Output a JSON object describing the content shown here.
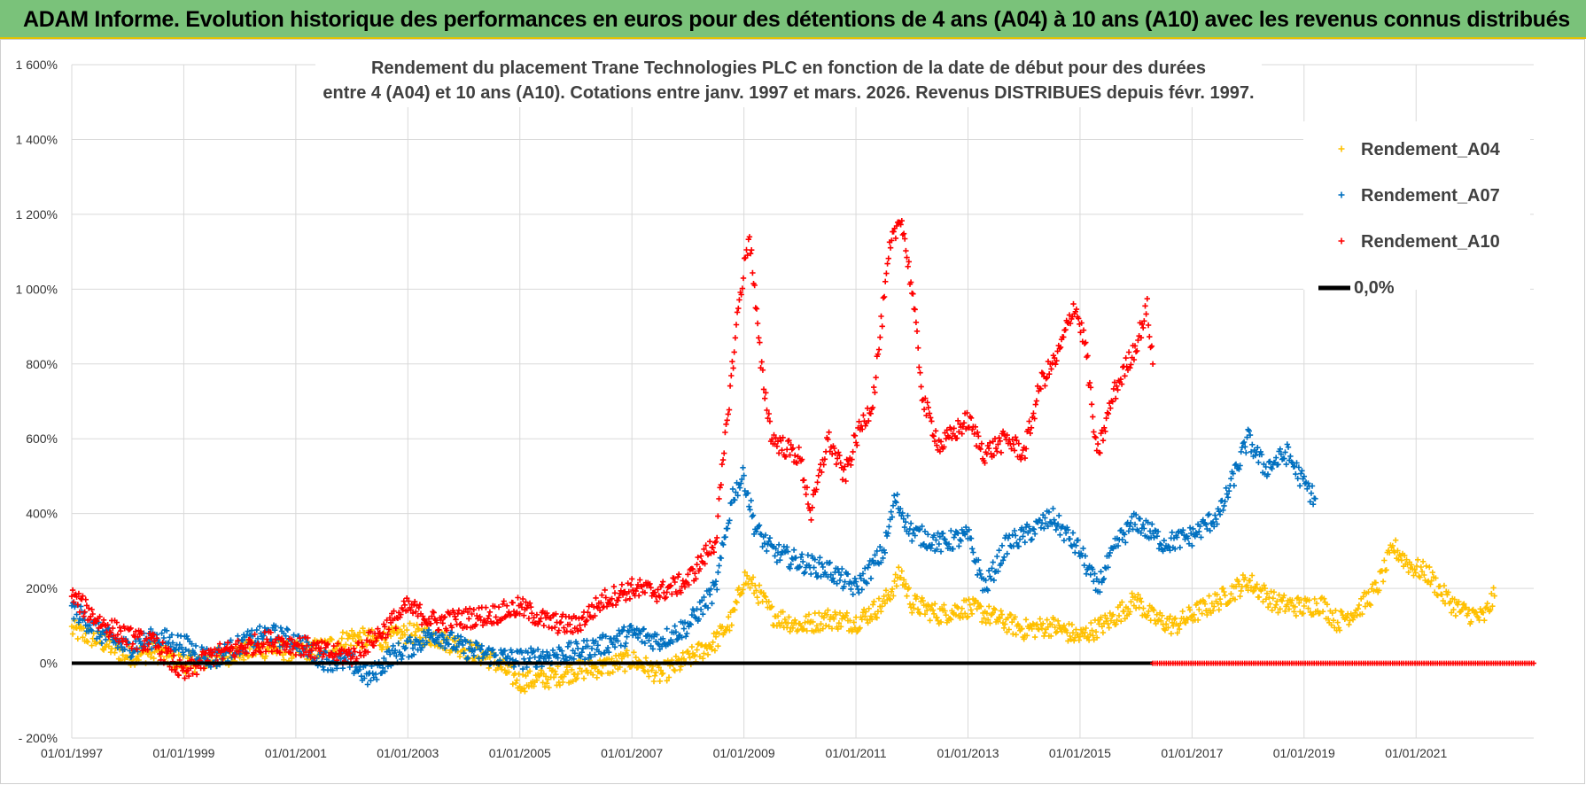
{
  "header": {
    "title": "ADAM Informe. Evolution historique des performances en euros pour des détentions de 4 ans (A04) à 10 ans (A10) avec les revenus connus distribués"
  },
  "chart_data": {
    "type": "scatter",
    "title_line1": "Rendement du placement Trane Technologies PLC en fonction de la date de début pour des durées",
    "title_line2": "entre 4 (A04) et 10 ans (A10).  Cotations entre janv. 1997 et mars. 2026. Revenus DISTRIBUES depuis févr. 1997.",
    "xlabel": "",
    "ylabel": "",
    "xlim": [
      1997.0,
      2023.1
    ],
    "ylim": [
      -200,
      1600
    ],
    "y_ticks": [
      -200,
      0,
      200,
      400,
      600,
      800,
      1000,
      1200,
      1400,
      1600
    ],
    "y_tick_labels": [
      "- 200%",
      "0%",
      "200%",
      "400%",
      "600%",
      "800%",
      "1 000%",
      "1 200%",
      "1 400%",
      "1 600%"
    ],
    "x_ticks": [
      1997,
      1999,
      2001,
      2003,
      2005,
      2007,
      2009,
      2011,
      2013,
      2015,
      2017,
      2019,
      2021
    ],
    "x_tick_labels": [
      "01/01/1997",
      "01/01/1999",
      "01/01/2001",
      "01/01/2003",
      "01/01/2005",
      "01/01/2007",
      "01/01/2009",
      "01/01/2011",
      "01/01/2013",
      "01/01/2015",
      "01/01/2017",
      "01/01/2019",
      "01/01/2021"
    ],
    "grid": true,
    "legend_position": "top-right",
    "series": [
      {
        "name": "Rendement_A04",
        "color": "#ffc000",
        "marker": "plus",
        "points": [
          [
            1997.0,
            90
          ],
          [
            1997.5,
            60
          ],
          [
            1998.0,
            20
          ],
          [
            1998.5,
            30
          ],
          [
            1999.0,
            0
          ],
          [
            1999.5,
            10
          ],
          [
            2000.0,
            30
          ],
          [
            2000.5,
            40
          ],
          [
            2001.0,
            30
          ],
          [
            2001.5,
            40
          ],
          [
            2002.0,
            70
          ],
          [
            2002.5,
            60
          ],
          [
            2003.0,
            80
          ],
          [
            2003.5,
            70
          ],
          [
            2004.0,
            40
          ],
          [
            2004.5,
            10
          ],
          [
            2005.0,
            -50
          ],
          [
            2005.5,
            -40
          ],
          [
            2006.0,
            -20
          ],
          [
            2006.5,
            -10
          ],
          [
            2007.0,
            10
          ],
          [
            2007.5,
            -30
          ],
          [
            2008.0,
            10
          ],
          [
            2008.5,
            60
          ],
          [
            2008.8,
            120
          ],
          [
            2009.0,
            230
          ],
          [
            2009.2,
            200
          ],
          [
            2009.5,
            130
          ],
          [
            2010.0,
            100
          ],
          [
            2010.5,
            120
          ],
          [
            2011.0,
            110
          ],
          [
            2011.5,
            160
          ],
          [
            2011.8,
            240
          ],
          [
            2012.0,
            160
          ],
          [
            2012.5,
            130
          ],
          [
            2013.0,
            150
          ],
          [
            2013.5,
            120
          ],
          [
            2014.0,
            90
          ],
          [
            2014.5,
            100
          ],
          [
            2015.0,
            70
          ],
          [
            2015.5,
            110
          ],
          [
            2016.0,
            170
          ],
          [
            2016.3,
            120
          ],
          [
            2016.7,
            100
          ],
          [
            2017.0,
            130
          ],
          [
            2017.5,
            170
          ],
          [
            2018.0,
            220
          ],
          [
            2018.5,
            160
          ],
          [
            2019.0,
            150
          ],
          [
            2019.3,
            160
          ],
          [
            2019.6,
            110
          ],
          [
            2020.0,
            150
          ],
          [
            2020.3,
            200
          ],
          [
            2020.6,
            310
          ],
          [
            2020.9,
            260
          ],
          [
            2021.2,
            240
          ],
          [
            2021.5,
            180
          ],
          [
            2021.8,
            140
          ],
          [
            2022.2,
            120
          ],
          [
            2022.4,
            180
          ]
        ]
      },
      {
        "name": "Rendement_A07",
        "color": "#0070c0",
        "marker": "plus",
        "points": [
          [
            1997.0,
            150
          ],
          [
            1997.5,
            80
          ],
          [
            1998.0,
            40
          ],
          [
            1998.5,
            70
          ],
          [
            1999.0,
            50
          ],
          [
            1999.5,
            10
          ],
          [
            2000.0,
            50
          ],
          [
            2000.5,
            80
          ],
          [
            2001.0,
            60
          ],
          [
            2001.5,
            10
          ],
          [
            2002.0,
            0
          ],
          [
            2002.3,
            -40
          ],
          [
            2002.7,
            20
          ],
          [
            2003.0,
            40
          ],
          [
            2003.5,
            80
          ],
          [
            2004.0,
            40
          ],
          [
            2004.5,
            20
          ],
          [
            2005.0,
            10
          ],
          [
            2005.5,
            20
          ],
          [
            2006.0,
            30
          ],
          [
            2006.5,
            50
          ],
          [
            2007.0,
            80
          ],
          [
            2007.5,
            60
          ],
          [
            2008.0,
            100
          ],
          [
            2008.5,
            200
          ],
          [
            2008.8,
            450
          ],
          [
            2009.0,
            500
          ],
          [
            2009.2,
            360
          ],
          [
            2009.5,
            300
          ],
          [
            2010.0,
            270
          ],
          [
            2010.5,
            250
          ],
          [
            2011.0,
            200
          ],
          [
            2011.5,
            300
          ],
          [
            2011.7,
            440
          ],
          [
            2012.0,
            350
          ],
          [
            2012.5,
            320
          ],
          [
            2013.0,
            340
          ],
          [
            2013.3,
            200
          ],
          [
            2013.7,
            320
          ],
          [
            2014.0,
            340
          ],
          [
            2014.5,
            390
          ],
          [
            2015.0,
            300
          ],
          [
            2015.3,
            200
          ],
          [
            2015.7,
            330
          ],
          [
            2016.0,
            380
          ],
          [
            2016.5,
            320
          ],
          [
            2017.0,
            340
          ],
          [
            2017.5,
            400
          ],
          [
            2018.0,
            600
          ],
          [
            2018.3,
            520
          ],
          [
            2018.7,
            560
          ],
          [
            2019.0,
            480
          ],
          [
            2019.2,
            440
          ]
        ]
      },
      {
        "name": "Rendement_A10",
        "color": "#ff0000",
        "marker": "plus",
        "points": [
          [
            1997.0,
            180
          ],
          [
            1997.5,
            110
          ],
          [
            1998.0,
            70
          ],
          [
            1998.5,
            50
          ],
          [
            1999.0,
            -30
          ],
          [
            1999.5,
            20
          ],
          [
            2000.0,
            40
          ],
          [
            2000.5,
            60
          ],
          [
            2001.0,
            50
          ],
          [
            2001.5,
            30
          ],
          [
            2002.0,
            20
          ],
          [
            2002.5,
            80
          ],
          [
            2003.0,
            150
          ],
          [
            2003.5,
            110
          ],
          [
            2004.0,
            120
          ],
          [
            2004.5,
            130
          ],
          [
            2005.0,
            150
          ],
          [
            2005.5,
            110
          ],
          [
            2006.0,
            100
          ],
          [
            2006.5,
            170
          ],
          [
            2007.0,
            200
          ],
          [
            2007.5,
            190
          ],
          [
            2008.0,
            220
          ],
          [
            2008.5,
            330
          ],
          [
            2008.7,
            650
          ],
          [
            2008.9,
            950
          ],
          [
            2009.1,
            1150
          ],
          [
            2009.3,
            800
          ],
          [
            2009.5,
            600
          ],
          [
            2010.0,
            550
          ],
          [
            2010.2,
            400
          ],
          [
            2010.5,
            600
          ],
          [
            2010.8,
            500
          ],
          [
            2011.0,
            600
          ],
          [
            2011.3,
            700
          ],
          [
            2011.6,
            1100
          ],
          [
            2011.8,
            1200
          ],
          [
            2012.0,
            1000
          ],
          [
            2012.2,
            700
          ],
          [
            2012.5,
            580
          ],
          [
            2013.0,
            650
          ],
          [
            2013.3,
            560
          ],
          [
            2013.7,
            600
          ],
          [
            2014.0,
            560
          ],
          [
            2014.3,
            750
          ],
          [
            2014.6,
            820
          ],
          [
            2014.9,
            960
          ],
          [
            2015.1,
            850
          ],
          [
            2015.3,
            550
          ],
          [
            2015.6,
            720
          ],
          [
            2016.0,
            850
          ],
          [
            2016.2,
            950
          ],
          [
            2016.3,
            800
          ]
        ]
      },
      {
        "name": "0,0%",
        "color": "#000000",
        "marker": "line",
        "points": [
          [
            1997.0,
            0
          ],
          [
            2016.3,
            0
          ]
        ]
      }
    ],
    "zero_markers": {
      "color": "#ff0000",
      "x_start": 2016.3,
      "x_end": 2023.1,
      "y": 0
    }
  }
}
